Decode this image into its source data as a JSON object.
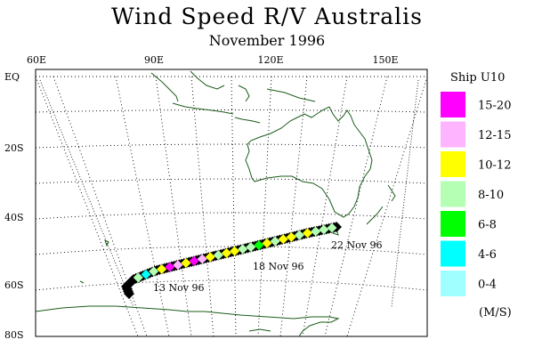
{
  "title": "Wind Speed  R/V Australis",
  "subtitle": "November 1996",
  "map": {
    "lon_labels": [
      "60E",
      "90E",
      "120E",
      "150E"
    ],
    "lat_labels": [
      "EQ",
      "20S",
      "40S",
      "60S",
      "80S"
    ],
    "coastline_color": "#1a5c1a",
    "grid_style": "dotted"
  },
  "track_labels": [
    {
      "text": "13 Nov 96"
    },
    {
      "text": "18 Nov 96"
    },
    {
      "text": "22 Nov 96"
    }
  ],
  "legend": {
    "title": "Ship U10",
    "units": "(M/S)",
    "items": [
      {
        "label": "15-20",
        "color": "#ff00ff"
      },
      {
        "label": "12-15",
        "color": "#ffb4ff"
      },
      {
        "label": "10-12",
        "color": "#ffff00"
      },
      {
        "label": "8-10",
        "color": "#b4ffb4"
      },
      {
        "label": "6-8",
        "color": "#00ff00"
      },
      {
        "label": "4-6",
        "color": "#00ffff"
      },
      {
        "label": "0-4",
        "color": "#a0ffff"
      }
    ]
  },
  "track": {
    "marker": "diamond",
    "default_color": "#000000",
    "colored_points": [
      {
        "color": "#b4ffb4"
      },
      {
        "color": "#00ffff"
      },
      {
        "color": "#b4ffb4"
      },
      {
        "color": "#ffff00"
      },
      {
        "color": "#ff00ff"
      },
      {
        "color": "#ffb4ff"
      },
      {
        "color": "#ffff00"
      },
      {
        "color": "#ff00ff"
      },
      {
        "color": "#ffb4ff"
      },
      {
        "color": "#ffff00"
      },
      {
        "color": "#b4ffb4"
      },
      {
        "color": "#ffff00"
      },
      {
        "color": "#ffff00"
      },
      {
        "color": "#b4ffb4"
      },
      {
        "color": "#b4ffb4"
      },
      {
        "color": "#00ff00"
      },
      {
        "color": "#ffff00"
      },
      {
        "color": "#b4ffb4"
      },
      {
        "color": "#ffff00"
      },
      {
        "color": "#ffff00"
      },
      {
        "color": "#b4ffb4"
      },
      {
        "color": "#ffff00"
      },
      {
        "color": "#b4ffb4"
      },
      {
        "color": "#b4ffb4"
      },
      {
        "color": "#b4ffb4"
      }
    ]
  }
}
